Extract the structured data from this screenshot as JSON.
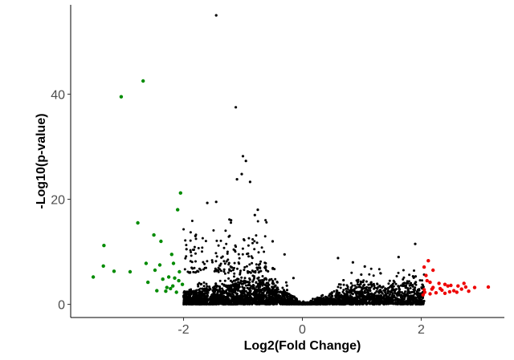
{
  "chart_data": {
    "type": "scatter",
    "title": "",
    "xlabel": "Log2(Fold Change)",
    "ylabel": "-Log10(p-value)",
    "xlim": [
      -3.9,
      3.4
    ],
    "ylim": [
      -2.5,
      57
    ],
    "x_ticks": [
      {
        "value": -2,
        "label": "-2"
      },
      {
        "value": 0,
        "label": "0"
      },
      {
        "value": 2,
        "label": "2"
      }
    ],
    "y_ticks": [
      {
        "value": 0,
        "label": "0"
      },
      {
        "value": 20,
        "label": "20"
      },
      {
        "value": 40,
        "label": "40"
      }
    ],
    "grid": false,
    "legend": "none",
    "colors": {
      "down": "#008b00",
      "up": "#ee0000",
      "ns": "#000000",
      "axis": "#000000",
      "tick_label": "#4d4d4d"
    },
    "series": [
      {
        "color_key": "down",
        "points": [
          [
            -2.68,
            42.5
          ],
          [
            -3.05,
            39.5
          ],
          [
            -2.05,
            21.2
          ],
          [
            -2.1,
            18.0
          ],
          [
            -2.77,
            15.5
          ],
          [
            -2.5,
            13.2
          ],
          [
            -2.38,
            12.0
          ],
          [
            -3.34,
            11.2
          ],
          [
            -2.2,
            9.5
          ],
          [
            -2.63,
            7.8
          ],
          [
            -2.4,
            7.5
          ],
          [
            -3.35,
            7.3
          ],
          [
            -2.48,
            6.5
          ],
          [
            -3.17,
            6.3
          ],
          [
            -2.9,
            6.2
          ],
          [
            -3.52,
            5.2
          ],
          [
            -2.25,
            5.2
          ],
          [
            -2.15,
            5.0
          ],
          [
            -2.6,
            4.2
          ],
          [
            -2.18,
            3.5
          ],
          [
            -2.22,
            3.0
          ],
          [
            -2.45,
            2.6
          ],
          [
            -2.3,
            2.5
          ],
          [
            -2.12,
            2.3
          ],
          [
            -2.08,
            4.5
          ],
          [
            -2.02,
            3.8
          ],
          [
            -2.35,
            4.8
          ],
          [
            -2.28,
            3.2
          ],
          [
            -2.07,
            6.2
          ],
          [
            -2.17,
            7.8
          ]
        ]
      },
      {
        "color_key": "up",
        "points": [
          [
            2.12,
            8.3
          ],
          [
            2.05,
            7.1
          ],
          [
            2.2,
            6.5
          ],
          [
            2.08,
            5.5
          ],
          [
            2.1,
            4.5
          ],
          [
            2.15,
            4.2
          ],
          [
            2.3,
            4.0
          ],
          [
            2.4,
            3.8
          ],
          [
            2.5,
            3.6
          ],
          [
            2.62,
            3.5
          ],
          [
            2.75,
            3.3
          ],
          [
            2.9,
            3.2
          ],
          [
            3.13,
            3.3
          ],
          [
            2.45,
            3.5
          ],
          [
            2.2,
            3.2
          ],
          [
            2.05,
            2.8
          ],
          [
            2.18,
            2.9
          ],
          [
            2.35,
            2.7
          ],
          [
            2.55,
            2.6
          ],
          [
            2.68,
            2.9
          ],
          [
            2.8,
            2.5
          ],
          [
            2.06,
            2.3
          ],
          [
            2.25,
            2.2
          ],
          [
            2.4,
            2.1
          ],
          [
            2.6,
            2.3
          ],
          [
            2.15,
            2.0
          ],
          [
            2.03,
            1.8
          ],
          [
            2.32,
            3.0
          ],
          [
            2.48,
            2.4
          ],
          [
            2.72,
            4.0
          ]
        ]
      },
      {
        "color_key": "ns",
        "points": [
          [
            -1.45,
            55.0
          ],
          [
            -1.12,
            37.5
          ],
          [
            -1.0,
            28.2
          ],
          [
            -0.95,
            27.3
          ],
          [
            -1.02,
            24.8
          ],
          [
            -1.1,
            23.8
          ],
          [
            -0.88,
            23.3
          ],
          [
            -1.45,
            19.5
          ],
          [
            -1.6,
            19.3
          ],
          [
            -0.75,
            18.0
          ],
          [
            -0.8,
            17.0
          ],
          [
            -1.2,
            16.0
          ],
          [
            1.9,
            11.5
          ],
          [
            1.62,
            9.0
          ],
          [
            0.6,
            8.8
          ],
          [
            0.85,
            8.0
          ],
          [
            1.05,
            7.2
          ],
          [
            -0.5,
            12.0
          ],
          [
            -0.3,
            9.5
          ],
          [
            -1.8,
            13.0
          ],
          [
            -1.95,
            10.5
          ],
          [
            -0.15,
            5.0
          ]
        ]
      }
    ]
  }
}
